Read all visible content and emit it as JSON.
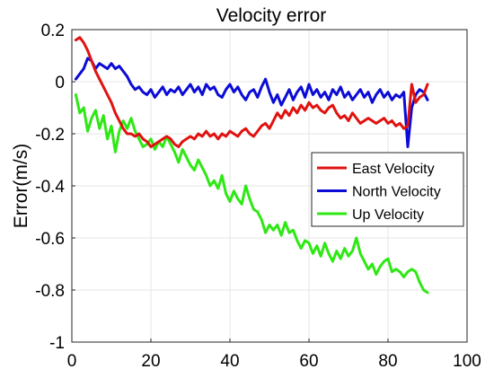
{
  "chart_data": {
    "type": "line",
    "title": "Velocity error",
    "xlabel": "",
    "ylabel": "Error(m/s)",
    "xlim": [
      0,
      100
    ],
    "ylim": [
      -1,
      0.2
    ],
    "xticks": [
      0,
      20,
      40,
      60,
      80,
      100
    ],
    "xtick_labels": [
      "0",
      "20",
      "40",
      "60",
      "80",
      "100"
    ],
    "yticks": [
      0.2,
      0,
      -0.2,
      -0.4,
      -0.6,
      -0.8,
      -1
    ],
    "ytick_labels": [
      "0.2",
      "0",
      "-0.2",
      "-0.4",
      "-0.6",
      "-0.8",
      "-1"
    ],
    "grid": true,
    "legend_position": "right",
    "series": [
      {
        "name": "East Velocity",
        "color": "#e0120f",
        "x": [
          1,
          2,
          3,
          4,
          5,
          6,
          7,
          8,
          9,
          10,
          11,
          12,
          13,
          14,
          15,
          16,
          17,
          18,
          19,
          20,
          21,
          22,
          23,
          24,
          25,
          26,
          27,
          28,
          29,
          30,
          31,
          32,
          33,
          34,
          35,
          36,
          37,
          38,
          39,
          40,
          41,
          42,
          43,
          44,
          45,
          46,
          47,
          48,
          49,
          50,
          51,
          52,
          53,
          54,
          55,
          56,
          57,
          58,
          59,
          60,
          61,
          62,
          63,
          64,
          65,
          66,
          67,
          68,
          69,
          70,
          71,
          72,
          73,
          74,
          75,
          76,
          77,
          78,
          79,
          80,
          81,
          82,
          83,
          84,
          85,
          86,
          87,
          88,
          89,
          90
        ],
        "values": [
          0.16,
          0.17,
          0.15,
          0.12,
          0.08,
          0.04,
          0.01,
          -0.02,
          -0.05,
          -0.08,
          -0.12,
          -0.15,
          -0.18,
          -0.2,
          -0.2,
          -0.21,
          -0.2,
          -0.22,
          -0.23,
          -0.25,
          -0.24,
          -0.23,
          -0.22,
          -0.21,
          -0.22,
          -0.24,
          -0.25,
          -0.23,
          -0.22,
          -0.21,
          -0.22,
          -0.2,
          -0.21,
          -0.19,
          -0.21,
          -0.2,
          -0.22,
          -0.2,
          -0.21,
          -0.19,
          -0.2,
          -0.21,
          -0.19,
          -0.18,
          -0.2,
          -0.21,
          -0.19,
          -0.17,
          -0.16,
          -0.18,
          -0.15,
          -0.12,
          -0.14,
          -0.11,
          -0.13,
          -0.1,
          -0.12,
          -0.09,
          -0.11,
          -0.08,
          -0.1,
          -0.09,
          -0.11,
          -0.12,
          -0.1,
          -0.09,
          -0.12,
          -0.14,
          -0.13,
          -0.15,
          -0.12,
          -0.14,
          -0.16,
          -0.15,
          -0.14,
          -0.15,
          -0.16,
          -0.15,
          -0.14,
          -0.16,
          -0.15,
          -0.17,
          -0.16,
          -0.18,
          -0.17,
          -0.01,
          -0.08,
          -0.06,
          -0.05,
          -0.01
        ]
      },
      {
        "name": "North Velocity",
        "color": "#0b0bd6",
        "x": [
          1,
          2,
          3,
          4,
          5,
          6,
          7,
          8,
          9,
          10,
          11,
          12,
          13,
          14,
          15,
          16,
          17,
          18,
          19,
          20,
          21,
          22,
          23,
          24,
          25,
          26,
          27,
          28,
          29,
          30,
          31,
          32,
          33,
          34,
          35,
          36,
          37,
          38,
          39,
          40,
          41,
          42,
          43,
          44,
          45,
          46,
          47,
          48,
          49,
          50,
          51,
          52,
          53,
          54,
          55,
          56,
          57,
          58,
          59,
          60,
          61,
          62,
          63,
          64,
          65,
          66,
          67,
          68,
          69,
          70,
          71,
          72,
          73,
          74,
          75,
          76,
          77,
          78,
          79,
          80,
          81,
          82,
          83,
          84,
          85,
          86,
          87,
          88,
          89,
          90
        ],
        "values": [
          0.01,
          0.03,
          0.05,
          0.09,
          0.08,
          0.05,
          0.07,
          0.06,
          0.05,
          0.07,
          0.05,
          0.06,
          0.04,
          0.02,
          -0.01,
          -0.03,
          -0.02,
          -0.04,
          -0.05,
          -0.03,
          -0.06,
          -0.04,
          -0.02,
          -0.05,
          -0.03,
          -0.04,
          -0.02,
          -0.05,
          -0.03,
          -0.01,
          -0.04,
          -0.02,
          -0.05,
          -0.01,
          -0.03,
          -0.02,
          -0.05,
          -0.06,
          -0.03,
          -0.01,
          -0.04,
          -0.02,
          -0.05,
          -0.07,
          -0.04,
          -0.03,
          -0.06,
          -0.02,
          0.01,
          -0.04,
          -0.08,
          -0.05,
          -0.09,
          -0.06,
          -0.03,
          -0.07,
          -0.04,
          -0.02,
          -0.06,
          -0.01,
          -0.05,
          -0.03,
          -0.06,
          -0.04,
          -0.07,
          -0.03,
          -0.05,
          -0.02,
          -0.06,
          -0.04,
          -0.07,
          -0.05,
          -0.03,
          -0.06,
          -0.04,
          -0.08,
          -0.05,
          -0.03,
          -0.06,
          -0.04,
          -0.07,
          -0.05,
          -0.06,
          -0.04,
          -0.25,
          -0.1,
          -0.05,
          -0.03,
          -0.04,
          -0.07
        ]
      },
      {
        "name": "Up Velocity",
        "color": "#2ee814",
        "x": [
          1,
          2,
          3,
          4,
          5,
          6,
          7,
          8,
          9,
          10,
          11,
          12,
          13,
          14,
          15,
          16,
          17,
          18,
          19,
          20,
          21,
          22,
          23,
          24,
          25,
          26,
          27,
          28,
          29,
          30,
          31,
          32,
          33,
          34,
          35,
          36,
          37,
          38,
          39,
          40,
          41,
          42,
          43,
          44,
          45,
          46,
          47,
          48,
          49,
          50,
          51,
          52,
          53,
          54,
          55,
          56,
          57,
          58,
          59,
          60,
          61,
          62,
          63,
          64,
          65,
          66,
          67,
          68,
          69,
          70,
          71,
          72,
          73,
          74,
          75,
          76,
          77,
          78,
          79,
          80,
          81,
          82,
          83,
          84,
          85,
          86,
          87,
          88,
          89,
          90
        ],
        "values": [
          -0.05,
          -0.12,
          -0.1,
          -0.19,
          -0.14,
          -0.11,
          -0.18,
          -0.13,
          -0.22,
          -0.17,
          -0.27,
          -0.19,
          -0.15,
          -0.18,
          -0.14,
          -0.19,
          -0.22,
          -0.25,
          -0.24,
          -0.22,
          -0.26,
          -0.23,
          -0.25,
          -0.21,
          -0.24,
          -0.27,
          -0.31,
          -0.26,
          -0.29,
          -0.32,
          -0.34,
          -0.3,
          -0.33,
          -0.36,
          -0.4,
          -0.38,
          -0.41,
          -0.36,
          -0.43,
          -0.46,
          -0.42,
          -0.45,
          -0.47,
          -0.4,
          -0.45,
          -0.49,
          -0.5,
          -0.53,
          -0.58,
          -0.55,
          -0.57,
          -0.55,
          -0.59,
          -0.54,
          -0.58,
          -0.57,
          -0.61,
          -0.64,
          -0.61,
          -0.62,
          -0.66,
          -0.63,
          -0.67,
          -0.62,
          -0.66,
          -0.69,
          -0.65,
          -0.68,
          -0.64,
          -0.67,
          -0.65,
          -0.6,
          -0.66,
          -0.69,
          -0.72,
          -0.7,
          -0.74,
          -0.71,
          -0.69,
          -0.68,
          -0.73,
          -0.72,
          -0.73,
          -0.75,
          -0.73,
          -0.72,
          -0.73,
          -0.77,
          -0.8,
          -0.81
        ]
      }
    ]
  }
}
